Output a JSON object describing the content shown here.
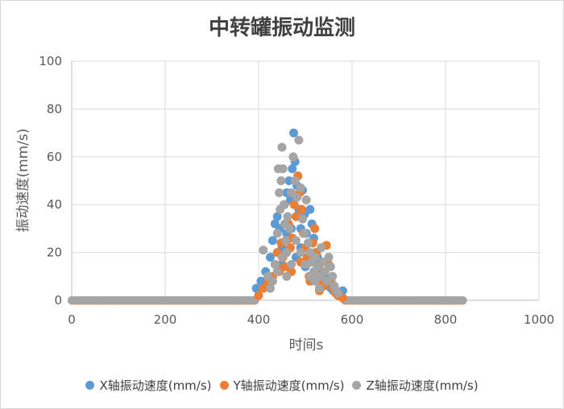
{
  "chart_data": {
    "type": "scatter",
    "title": "中转罐振动监测",
    "xlabel": "时间s",
    "ylabel": "振动速度(mm/s)",
    "xlim": [
      0,
      1000
    ],
    "ylim": [
      0,
      100
    ],
    "xticks": [
      "0",
      "200",
      "400",
      "600",
      "800",
      "1000"
    ],
    "yticks": [
      "0",
      "20",
      "40",
      "60",
      "80",
      "100"
    ],
    "grid": true,
    "legend_position": "bottom",
    "series": [
      {
        "name": "X轴振动速度(mm/s)",
        "color": "#5b9bd5",
        "points": [
          [
            395,
            5
          ],
          [
            405,
            8
          ],
          [
            415,
            12
          ],
          [
            425,
            18
          ],
          [
            430,
            25
          ],
          [
            435,
            32
          ],
          [
            440,
            35
          ],
          [
            445,
            30
          ],
          [
            450,
            22
          ],
          [
            455,
            40
          ],
          [
            460,
            45
          ],
          [
            465,
            50
          ],
          [
            468,
            42
          ],
          [
            472,
            55
          ],
          [
            475,
            70
          ],
          [
            478,
            58
          ],
          [
            482,
            48
          ],
          [
            486,
            38
          ],
          [
            490,
            30
          ],
          [
            494,
            46
          ],
          [
            498,
            36
          ],
          [
            502,
            28
          ],
          [
            506,
            24
          ],
          [
            510,
            38
          ],
          [
            514,
            32
          ],
          [
            518,
            26
          ],
          [
            522,
            20
          ],
          [
            526,
            18
          ],
          [
            530,
            15
          ],
          [
            535,
            12
          ],
          [
            540,
            10
          ],
          [
            545,
            8
          ],
          [
            550,
            6
          ],
          [
            555,
            5
          ],
          [
            560,
            4
          ],
          [
            570,
            3
          ],
          [
            580,
            4
          ],
          [
            440,
            20
          ],
          [
            460,
            28
          ],
          [
            480,
            18
          ],
          [
            500,
            14
          ],
          [
            520,
            10
          ],
          [
            450,
            15
          ],
          [
            470,
            30
          ],
          [
            490,
            22
          ],
          [
            510,
            16
          ],
          [
            530,
            8
          ]
        ]
      },
      {
        "name": "Y轴振动速度(mm/s)",
        "color": "#ed7d31",
        "points": [
          [
            400,
            2
          ],
          [
            410,
            5
          ],
          [
            420,
            8
          ],
          [
            430,
            10
          ],
          [
            436,
            15
          ],
          [
            440,
            20
          ],
          [
            444,
            12
          ],
          [
            448,
            24
          ],
          [
            452,
            18
          ],
          [
            456,
            14
          ],
          [
            460,
            25
          ],
          [
            464,
            32
          ],
          [
            468,
            22
          ],
          [
            472,
            26
          ],
          [
            476,
            40
          ],
          [
            480,
            35
          ],
          [
            484,
            52
          ],
          [
            488,
            45
          ],
          [
            492,
            38
          ],
          [
            496,
            28
          ],
          [
            500,
            22
          ],
          [
            504,
            18
          ],
          [
            508,
            10
          ],
          [
            512,
            16
          ],
          [
            516,
            24
          ],
          [
            520,
            30
          ],
          [
            524,
            20
          ],
          [
            528,
            14
          ],
          [
            532,
            10
          ],
          [
            536,
            8
          ],
          [
            540,
            6
          ],
          [
            545,
            23
          ],
          [
            550,
            15
          ],
          [
            555,
            8
          ],
          [
            560,
            5
          ],
          [
            565,
            3
          ],
          [
            570,
            2
          ],
          [
            580,
            1
          ],
          [
            470,
            12
          ],
          [
            490,
            16
          ],
          [
            510,
            8
          ],
          [
            530,
            4
          ]
        ]
      },
      {
        "name": "Z轴振动速度(mm/s)",
        "color": "#a5a5a5",
        "points": [
          [
            410,
            21
          ],
          [
            420,
            10
          ],
          [
            425,
            5
          ],
          [
            430,
            8
          ],
          [
            435,
            15
          ],
          [
            440,
            28
          ],
          [
            442,
            55
          ],
          [
            444,
            45
          ],
          [
            446,
            38
          ],
          [
            448,
            50
          ],
          [
            450,
            64
          ],
          [
            452,
            55
          ],
          [
            454,
            40
          ],
          [
            456,
            32
          ],
          [
            458,
            25
          ],
          [
            460,
            20
          ],
          [
            462,
            35
          ],
          [
            466,
            30
          ],
          [
            470,
            45
          ],
          [
            474,
            60
          ],
          [
            478,
            50
          ],
          [
            482,
            43
          ],
          [
            486,
            67
          ],
          [
            490,
            47
          ],
          [
            494,
            34
          ],
          [
            498,
            28
          ],
          [
            502,
            42
          ],
          [
            506,
            24
          ],
          [
            510,
            20
          ],
          [
            514,
            16
          ],
          [
            518,
            12
          ],
          [
            522,
            18
          ],
          [
            526,
            14
          ],
          [
            530,
            10
          ],
          [
            534,
            22
          ],
          [
            538,
            16
          ],
          [
            542,
            12
          ],
          [
            546,
            8
          ],
          [
            550,
            18
          ],
          [
            554,
            14
          ],
          [
            558,
            10
          ],
          [
            562,
            6
          ],
          [
            566,
            4
          ],
          [
            570,
            3
          ],
          [
            440,
            12
          ],
          [
            450,
            18
          ],
          [
            460,
            10
          ],
          [
            470,
            15
          ],
          [
            480,
            25
          ],
          [
            490,
            20
          ],
          [
            500,
            15
          ],
          [
            510,
            10
          ],
          [
            520,
            8
          ],
          [
            530,
            5
          ]
        ]
      }
    ],
    "baseline": {
      "y": 0,
      "ranges": [
        [
          0,
          395
        ],
        [
          585,
          840
        ]
      ]
    }
  }
}
